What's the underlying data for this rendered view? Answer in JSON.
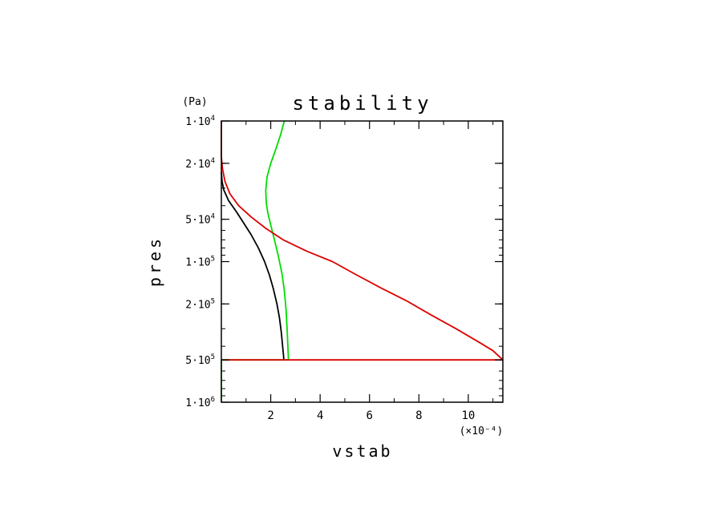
{
  "chart_data": {
    "type": "line",
    "title": "stability",
    "xlabel": "vstab",
    "ylabel": "pres",
    "yunit": "(Pa)",
    "xscale_label": "(×10⁻⁴)",
    "xscale_factor": 0.0001,
    "xlim": [
      0,
      11.4
    ],
    "ylim": [
      10000,
      1000000
    ],
    "yscale": "log",
    "yreversed": true,
    "grid": false,
    "legend": "none",
    "x_ticks": [
      {
        "value": 2,
        "label": "2"
      },
      {
        "value": 4,
        "label": "4"
      },
      {
        "value": 6,
        "label": "6"
      },
      {
        "value": 8,
        "label": "8"
      },
      {
        "value": 10,
        "label": "10"
      }
    ],
    "y_ticks": [
      {
        "value": 10000,
        "mant": "1·10",
        "exp": "4"
      },
      {
        "value": 20000,
        "mant": "2·10",
        "exp": "4"
      },
      {
        "value": 50000,
        "mant": "5·10",
        "exp": "4"
      },
      {
        "value": 100000,
        "mant": "1·10",
        "exp": "5"
      },
      {
        "value": 200000,
        "mant": "2·10",
        "exp": "5"
      },
      {
        "value": 500000,
        "mant": "5·10",
        "exp": "5"
      },
      {
        "value": 1000000,
        "mant": "1·10",
        "exp": "6"
      }
    ],
    "series": [
      {
        "color": "#000000",
        "points": [
          [
            0,
            23000
          ],
          [
            0.03,
            27000
          ],
          [
            0.1,
            31000
          ],
          [
            0.3,
            37000
          ],
          [
            0.6,
            44000
          ],
          [
            0.9,
            53000
          ],
          [
            1.2,
            64000
          ],
          [
            1.5,
            80000
          ],
          [
            1.75,
            100000
          ],
          [
            1.95,
            125000
          ],
          [
            2.1,
            155000
          ],
          [
            2.25,
            200000
          ],
          [
            2.35,
            250000
          ],
          [
            2.43,
            320000
          ],
          [
            2.48,
            400000
          ],
          [
            2.52,
            470000
          ],
          [
            2.53,
            500000
          ]
        ]
      },
      {
        "color": "#00dd00",
        "points": [
          [
            2.55,
            10000
          ],
          [
            2.4,
            12500
          ],
          [
            2.2,
            16000
          ],
          [
            2.0,
            20000
          ],
          [
            1.85,
            25000
          ],
          [
            1.8,
            31000
          ],
          [
            1.82,
            38000
          ],
          [
            1.88,
            45000
          ],
          [
            2.0,
            55000
          ],
          [
            2.15,
            70000
          ],
          [
            2.3,
            90000
          ],
          [
            2.45,
            120000
          ],
          [
            2.55,
            160000
          ],
          [
            2.62,
            220000
          ],
          [
            2.67,
            320000
          ],
          [
            2.7,
            420000
          ],
          [
            2.72,
            500000
          ],
          [
            0,
            500000
          ],
          [
            0,
            1000000
          ]
        ]
      },
      {
        "color": "#dd0000",
        "points": [
          [
            0,
            10000
          ],
          [
            0,
            18000
          ],
          [
            0.05,
            22000
          ],
          [
            0.15,
            27000
          ],
          [
            0.35,
            33000
          ],
          [
            0.7,
            40000
          ],
          [
            1.2,
            48000
          ],
          [
            1.8,
            58000
          ],
          [
            2.5,
            70000
          ],
          [
            3.5,
            85000
          ],
          [
            4.5,
            100000
          ],
          [
            5.5,
            125000
          ],
          [
            6.5,
            155000
          ],
          [
            7.5,
            190000
          ],
          [
            8.5,
            240000
          ],
          [
            9.5,
            300000
          ],
          [
            10.5,
            380000
          ],
          [
            11.0,
            430000
          ],
          [
            11.4,
            500000
          ],
          [
            0,
            500000
          ]
        ]
      }
    ]
  }
}
